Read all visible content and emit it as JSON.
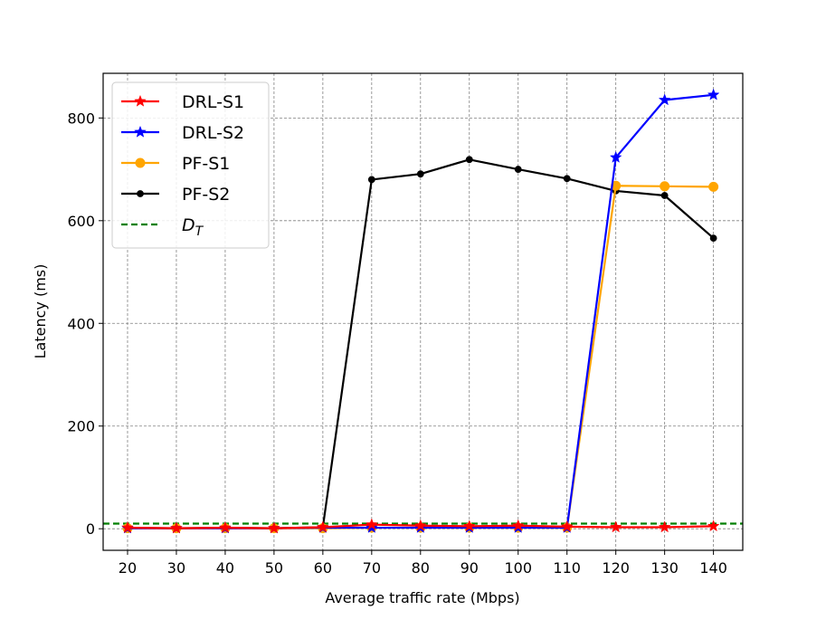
{
  "chart_data": {
    "type": "line",
    "title": "",
    "xlabel": "Average traffic rate (Mbps)",
    "ylabel": "Latency (ms)",
    "x_ticks": [
      "20",
      "30",
      "40",
      "50",
      "60",
      "70",
      "80",
      "90",
      "100",
      "110",
      "120",
      "130",
      "140"
    ],
    "y_ticks": [
      "0",
      "200",
      "400",
      "600",
      "800"
    ],
    "xlim": [
      15,
      146
    ],
    "ylim": [
      -42,
      887
    ],
    "grid": true,
    "legend_position": "top-left",
    "series": [
      {
        "name": "DRL-S1",
        "color": "#ff0000",
        "marker": "star",
        "style": "solid",
        "x": [
          20,
          30,
          40,
          50,
          60,
          70,
          80,
          90,
          100,
          110,
          120,
          130,
          140
        ],
        "y": [
          2,
          1,
          2,
          1,
          3,
          8,
          6,
          5,
          6,
          4,
          3,
          3,
          5
        ]
      },
      {
        "name": "DRL-S2",
        "color": "#0000ff",
        "marker": "star",
        "style": "solid",
        "x": [
          20,
          30,
          40,
          50,
          60,
          70,
          80,
          90,
          100,
          110,
          120,
          130,
          140
        ],
        "y": [
          1,
          1,
          1,
          1,
          2,
          2,
          2,
          2,
          2,
          2,
          723,
          835,
          845
        ]
      },
      {
        "name": "PF-S1",
        "color": "#ffa500",
        "marker": "circle",
        "style": "solid",
        "x": [
          20,
          30,
          40,
          50,
          60,
          70,
          80,
          90,
          100,
          110,
          120,
          130,
          140
        ],
        "y": [
          1,
          1,
          1,
          1,
          1,
          2,
          2,
          2,
          2,
          2,
          668,
          667,
          666
        ]
      },
      {
        "name": "PF-S2",
        "color": "#000000",
        "marker": "dot",
        "style": "solid",
        "x": [
          20,
          30,
          40,
          50,
          60,
          70,
          80,
          90,
          100,
          110,
          120,
          130,
          140
        ],
        "y": [
          2,
          1,
          2,
          1,
          3,
          680,
          691,
          719,
          700,
          682,
          658,
          649,
          566
        ]
      },
      {
        "name": "D_T",
        "color": "#008000",
        "marker": "none",
        "style": "dashed",
        "x": [
          15,
          146
        ],
        "y": [
          10,
          10
        ]
      }
    ],
    "legend": [
      {
        "label": "DRL-S1",
        "color": "#ff0000",
        "marker": "star",
        "style": "solid"
      },
      {
        "label": "DRL-S2",
        "color": "#0000ff",
        "marker": "star",
        "style": "solid"
      },
      {
        "label": "PF-S1",
        "color": "#ffa500",
        "marker": "circle",
        "style": "solid"
      },
      {
        "label": "PF-S2",
        "color": "#000000",
        "marker": "dot",
        "style": "solid"
      },
      {
        "label": "D",
        "sub": "T",
        "color": "#008000",
        "marker": "none",
        "style": "dashed"
      }
    ]
  }
}
